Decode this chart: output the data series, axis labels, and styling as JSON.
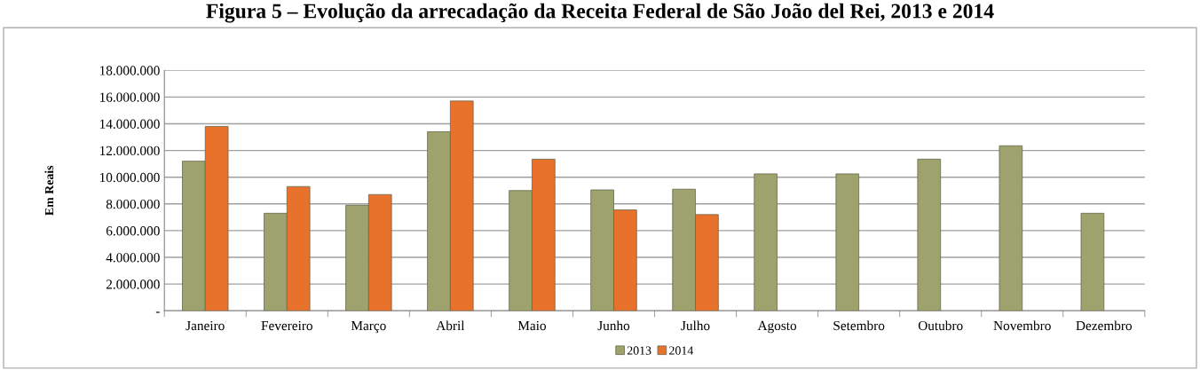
{
  "chart_data": {
    "type": "bar",
    "title": "Figura 5 – Evolução da arrecadação da Receita Federal de São João del Rei, 2013 e 2014",
    "ylabel": "Em Reais",
    "categories": [
      "Janeiro",
      "Fevereiro",
      "Março",
      "Abril",
      "Maio",
      "Junho",
      "Julho",
      "Agosto",
      "Setembro",
      "Outubro",
      "Novembro",
      "Dezembro"
    ],
    "series": [
      {
        "name": "2013",
        "color": "#9ea36e",
        "values": [
          11200000,
          7300000,
          7900000,
          13400000,
          9000000,
          9050000,
          9100000,
          10250000,
          10250000,
          11350000,
          12350000,
          7300000
        ]
      },
      {
        "name": "2014",
        "color": "#e8722c",
        "values": [
          13800000,
          9300000,
          8700000,
          15700000,
          11350000,
          7550000,
          7200000,
          null,
          null,
          null,
          null,
          null
        ]
      }
    ],
    "ylim": [
      0,
      18000000
    ],
    "yticks": [
      {
        "value": 0,
        "label": "-"
      },
      {
        "value": 2000000,
        "label": "2.000.000"
      },
      {
        "value": 4000000,
        "label": "4.000.000"
      },
      {
        "value": 6000000,
        "label": "6.000.000"
      },
      {
        "value": 8000000,
        "label": "8.000.000"
      },
      {
        "value": 10000000,
        "label": "10.000.000"
      },
      {
        "value": 12000000,
        "label": "12.000.000"
      },
      {
        "value": 14000000,
        "label": "14.000.000"
      },
      {
        "value": 16000000,
        "label": "16.000.000"
      },
      {
        "value": 18000000,
        "label": "18.000.000"
      }
    ],
    "grid": "y",
    "legend": "bottom"
  }
}
